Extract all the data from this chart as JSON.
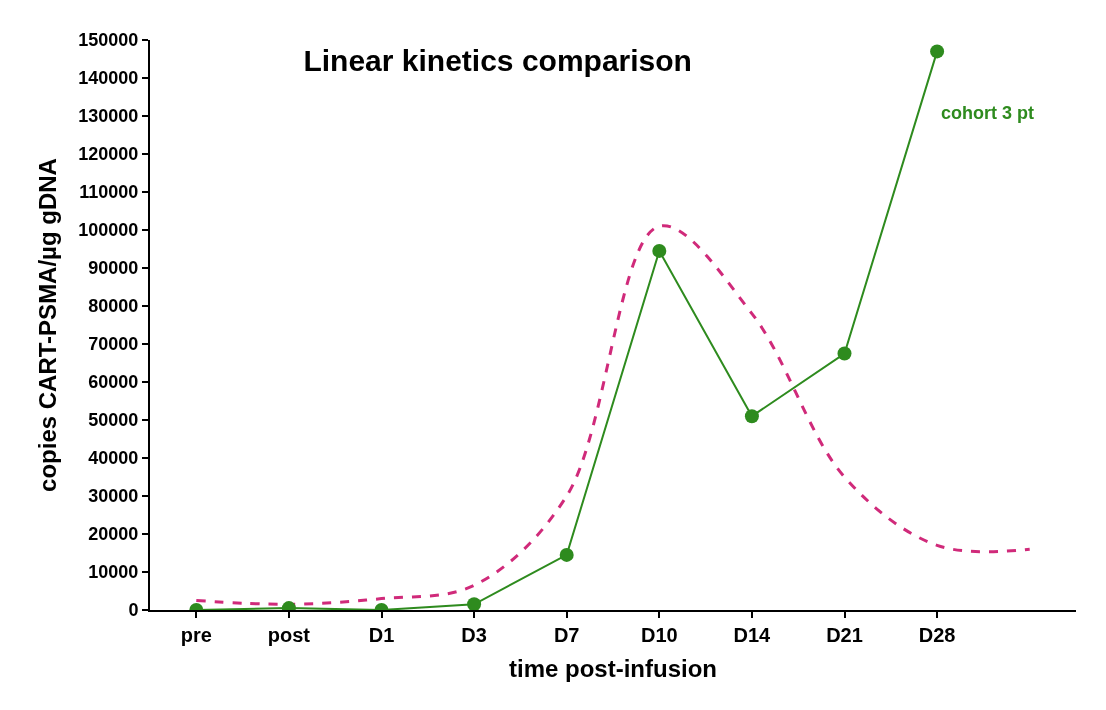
{
  "chart_data": {
    "type": "line",
    "title": "Linear kinetics comparison",
    "xlabel": "time post-infusion",
    "ylabel": "copies CART-PSMA/µg gDNA",
    "categories": [
      "pre",
      "post",
      "D1",
      "D3",
      "D7",
      "D10",
      "D14",
      "D21",
      "D28",
      null
    ],
    "series": [
      {
        "color": "#d02a7a",
        "line_style": "dashed",
        "marker": "none",
        "values": [
          2500,
          1500,
          3000,
          6500,
          30000,
          101000,
          78000,
          35000,
          17000,
          16000
        ]
      },
      {
        "name": "cohort 3 pt",
        "color": "#2e8b1e",
        "line_style": "solid",
        "marker": "circle",
        "values": [
          0,
          500,
          0,
          1500,
          14500,
          94500,
          51000,
          67500,
          147000,
          null
        ]
      }
    ],
    "ylim": [
      0,
      150000
    ],
    "yticks": [
      0,
      10000,
      20000,
      30000,
      40000,
      50000,
      60000,
      70000,
      80000,
      90000,
      100000,
      110000,
      120000,
      130000,
      140000,
      150000
    ],
    "legend": false
  }
}
